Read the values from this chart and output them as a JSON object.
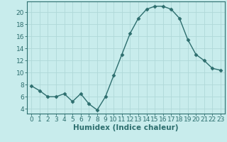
{
  "x": [
    0,
    1,
    2,
    3,
    4,
    5,
    6,
    7,
    8,
    9,
    10,
    11,
    12,
    13,
    14,
    15,
    16,
    17,
    18,
    19,
    20,
    21,
    22,
    23
  ],
  "y": [
    7.8,
    7.0,
    6.0,
    6.0,
    6.5,
    5.2,
    6.5,
    4.8,
    3.8,
    6.0,
    9.5,
    13.0,
    16.5,
    19.0,
    20.5,
    21.0,
    21.0,
    20.5,
    19.0,
    15.5,
    13.0,
    12.0,
    10.7,
    10.4
  ],
  "line_color": "#2d6e6e",
  "marker": "D",
  "marker_size": 2.5,
  "bg_color": "#c8ecec",
  "grid_color": "#b0d8d8",
  "xlabel": "Humidex (Indice chaleur)",
  "xlim": [
    -0.5,
    23.5
  ],
  "ylim": [
    3.2,
    21.8
  ],
  "yticks": [
    4,
    6,
    8,
    10,
    12,
    14,
    16,
    18,
    20
  ],
  "xticks": [
    0,
    1,
    2,
    3,
    4,
    5,
    6,
    7,
    8,
    9,
    10,
    11,
    12,
    13,
    14,
    15,
    16,
    17,
    18,
    19,
    20,
    21,
    22,
    23
  ],
  "tick_fontsize": 6.5,
  "xlabel_fontsize": 7.5,
  "line_width": 1.0
}
